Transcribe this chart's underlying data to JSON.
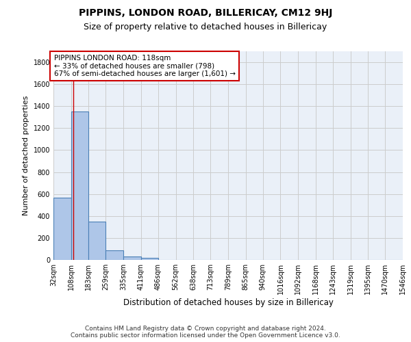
{
  "title": "PIPPINS, LONDON ROAD, BILLERICAY, CM12 9HJ",
  "subtitle": "Size of property relative to detached houses in Billericay",
  "xlabel": "Distribution of detached houses by size in Billericay",
  "ylabel": "Number of detached properties",
  "bin_edges": [
    32,
    108,
    183,
    259,
    335,
    411,
    486,
    562,
    638,
    713,
    789,
    865,
    940,
    1016,
    1092,
    1168,
    1243,
    1319,
    1395,
    1470,
    1546
  ],
  "bar_heights": [
    570,
    1350,
    350,
    90,
    30,
    20,
    0,
    0,
    0,
    0,
    0,
    0,
    0,
    0,
    0,
    0,
    0,
    0,
    0,
    0
  ],
  "bar_color": "#aec6e8",
  "bar_edge_color": "#4a7fb5",
  "property_line_x": 118,
  "annotation_line1": "PIPPINS LONDON ROAD: 118sqm",
  "annotation_line2": "← 33% of detached houses are smaller (798)",
  "annotation_line3": "67% of semi-detached houses are larger (1,601) →",
  "annotation_box_color": "#ffffff",
  "annotation_border_color": "#cc0000",
  "property_line_color": "#cc0000",
  "ylim": [
    0,
    1900
  ],
  "yticks": [
    0,
    200,
    400,
    600,
    800,
    1000,
    1200,
    1400,
    1600,
    1800
  ],
  "grid_color": "#cccccc",
  "bg_color": "#eaf0f8",
  "footer_line1": "Contains HM Land Registry data © Crown copyright and database right 2024.",
  "footer_line2": "Contains public sector information licensed under the Open Government Licence v3.0.",
  "title_fontsize": 10,
  "subtitle_fontsize": 9,
  "xlabel_fontsize": 8.5,
  "ylabel_fontsize": 8,
  "tick_fontsize": 7,
  "annotation_fontsize": 7.5,
  "footer_fontsize": 6.5
}
